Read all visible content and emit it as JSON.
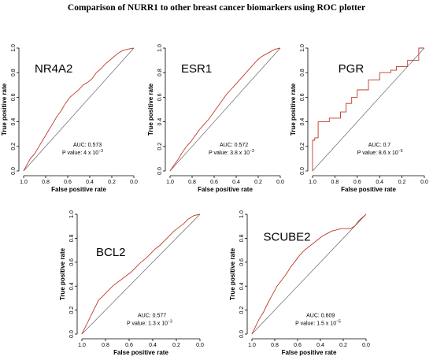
{
  "figure_title": "Comparison of NURR1 to other breast cancer biomarkers using ROC plotter",
  "chart_data": [
    {
      "type": "line",
      "title": "NR4A2",
      "xlabel": "False positive rate",
      "ylabel": "True positive rate",
      "x_ticks": [
        "1.0",
        "0.8",
        "0.6",
        "0.4",
        "0.2",
        "0.0"
      ],
      "y_ticks": [
        "0.0",
        "0.2",
        "0.4",
        "0.6",
        "0.8",
        "1.0"
      ],
      "xlim": [
        1,
        0
      ],
      "ylim": [
        0,
        1
      ],
      "auc_text": "AUC:  0.573",
      "p_text_prefix": "P value:  4 x 10",
      "p_exponent": "−3",
      "series": [
        {
          "x": [
            1.0,
            0.97,
            0.94,
            0.9,
            0.86,
            0.82,
            0.78,
            0.74,
            0.7,
            0.66,
            0.62,
            0.58,
            0.54,
            0.5,
            0.46,
            0.42,
            0.38,
            0.34,
            0.3,
            0.26,
            0.22,
            0.18,
            0.14,
            0.1,
            0.06,
            0.0
          ],
          "y": [
            0.0,
            0.05,
            0.1,
            0.14,
            0.2,
            0.26,
            0.32,
            0.38,
            0.44,
            0.49,
            0.55,
            0.6,
            0.63,
            0.66,
            0.7,
            0.72,
            0.75,
            0.8,
            0.83,
            0.87,
            0.9,
            0.93,
            0.96,
            0.98,
            0.99,
            1.0
          ]
        }
      ]
    },
    {
      "type": "line",
      "title": "ESR1",
      "xlabel": "False positive rate",
      "ylabel": "True positive rate",
      "x_ticks": [
        "1.0",
        "0.8",
        "0.6",
        "0.4",
        "0.2",
        "0.0"
      ],
      "y_ticks": [
        "0.0",
        "0.2",
        "0.4",
        "0.6",
        "0.8",
        "1.0"
      ],
      "xlim": [
        1,
        0
      ],
      "ylim": [
        0,
        1
      ],
      "auc_text": "AUC:  0.572",
      "p_text_prefix": "P value:  3.8 x 10",
      "p_exponent": "−3",
      "series": [
        {
          "x": [
            1.0,
            0.97,
            0.93,
            0.89,
            0.85,
            0.81,
            0.77,
            0.73,
            0.69,
            0.65,
            0.61,
            0.57,
            0.53,
            0.49,
            0.45,
            0.41,
            0.37,
            0.33,
            0.29,
            0.25,
            0.21,
            0.17,
            0.13,
            0.09,
            0.05,
            0.0
          ],
          "y": [
            0.0,
            0.04,
            0.09,
            0.15,
            0.2,
            0.24,
            0.29,
            0.34,
            0.38,
            0.42,
            0.47,
            0.52,
            0.57,
            0.62,
            0.66,
            0.7,
            0.74,
            0.78,
            0.82,
            0.86,
            0.9,
            0.93,
            0.95,
            0.97,
            0.99,
            1.0
          ]
        }
      ]
    },
    {
      "type": "line",
      "title": "PGR",
      "xlabel": "False positive rate",
      "ylabel": "True positive rate",
      "x_ticks": [
        "1.0",
        "0.8",
        "0.6",
        "0.4",
        "0.2",
        "0.0"
      ],
      "y_ticks": [
        "0.0",
        "0.2",
        "0.4",
        "0.6",
        "0.8",
        "1.0"
      ],
      "xlim": [
        1,
        0
      ],
      "ylim": [
        0,
        1
      ],
      "auc_text": "AUC:  0.7",
      "p_text_prefix": "P value:  8.6 x 10",
      "p_exponent": "−5",
      "series": [
        {
          "x": [
            1.0,
            1.0,
            0.98,
            0.98,
            0.95,
            0.95,
            0.85,
            0.85,
            0.75,
            0.75,
            0.7,
            0.7,
            0.65,
            0.65,
            0.6,
            0.6,
            0.5,
            0.5,
            0.4,
            0.4,
            0.3,
            0.3,
            0.25,
            0.25,
            0.15,
            0.15,
            0.1,
            0.1,
            0.05,
            0.05,
            0.0
          ],
          "y": [
            0.0,
            0.25,
            0.25,
            0.27,
            0.27,
            0.4,
            0.4,
            0.43,
            0.43,
            0.48,
            0.48,
            0.55,
            0.55,
            0.6,
            0.6,
            0.66,
            0.66,
            0.74,
            0.74,
            0.8,
            0.8,
            0.82,
            0.82,
            0.85,
            0.85,
            0.9,
            0.9,
            0.9,
            0.9,
            1.0,
            1.0
          ]
        }
      ]
    },
    {
      "type": "line",
      "title": "BCL2",
      "xlabel": "False positive rate",
      "ylabel": "True positive rate",
      "x_ticks": [
        "1.0",
        "0.8",
        "0.6",
        "0.4",
        "0.2",
        "0.0"
      ],
      "y_ticks": [
        "0.0",
        "0.2",
        "0.4",
        "0.6",
        "0.8",
        "1.0"
      ],
      "xlim": [
        1,
        0
      ],
      "ylim": [
        0,
        1
      ],
      "auc_text": "AUC:  0.577",
      "p_text_prefix": "P value:  1.3 x 10",
      "p_exponent": "−3",
      "series": [
        {
          "x": [
            1.0,
            0.98,
            0.95,
            0.92,
            0.89,
            0.86,
            0.82,
            0.78,
            0.74,
            0.7,
            0.66,
            0.62,
            0.58,
            0.54,
            0.5,
            0.46,
            0.42,
            0.38,
            0.34,
            0.3,
            0.26,
            0.22,
            0.18,
            0.14,
            0.1,
            0.05,
            0.0
          ],
          "y": [
            0.0,
            0.04,
            0.1,
            0.16,
            0.22,
            0.28,
            0.32,
            0.36,
            0.4,
            0.43,
            0.46,
            0.49,
            0.52,
            0.56,
            0.6,
            0.63,
            0.67,
            0.71,
            0.74,
            0.78,
            0.82,
            0.86,
            0.89,
            0.92,
            0.96,
            0.99,
            1.0
          ]
        }
      ]
    },
    {
      "type": "line",
      "title": "SCUBE2",
      "xlabel": "False positive rate",
      "ylabel": "True positive rate",
      "x_ticks": [
        "1.0",
        "0.8",
        "0.6",
        "0.4",
        "0.2",
        "0.0"
      ],
      "y_ticks": [
        "0.0",
        "0.2",
        "0.4",
        "0.6",
        "0.8",
        "1.0"
      ],
      "xlim": [
        1,
        0
      ],
      "ylim": [
        0,
        1
      ],
      "auc_text": "AUC:  0.609",
      "p_text_prefix": "P value:  1.5 x 10",
      "p_exponent": "−5",
      "series": [
        {
          "x": [
            1.0,
            0.97,
            0.94,
            0.9,
            0.86,
            0.82,
            0.78,
            0.74,
            0.7,
            0.66,
            0.62,
            0.58,
            0.54,
            0.5,
            0.46,
            0.42,
            0.38,
            0.34,
            0.3,
            0.26,
            0.22,
            0.18,
            0.14,
            0.1,
            0.06,
            0.0
          ],
          "y": [
            0.0,
            0.06,
            0.12,
            0.18,
            0.26,
            0.33,
            0.4,
            0.45,
            0.5,
            0.56,
            0.61,
            0.66,
            0.7,
            0.73,
            0.76,
            0.79,
            0.82,
            0.84,
            0.86,
            0.87,
            0.88,
            0.88,
            0.88,
            0.9,
            0.95,
            1.0
          ]
        }
      ]
    }
  ]
}
